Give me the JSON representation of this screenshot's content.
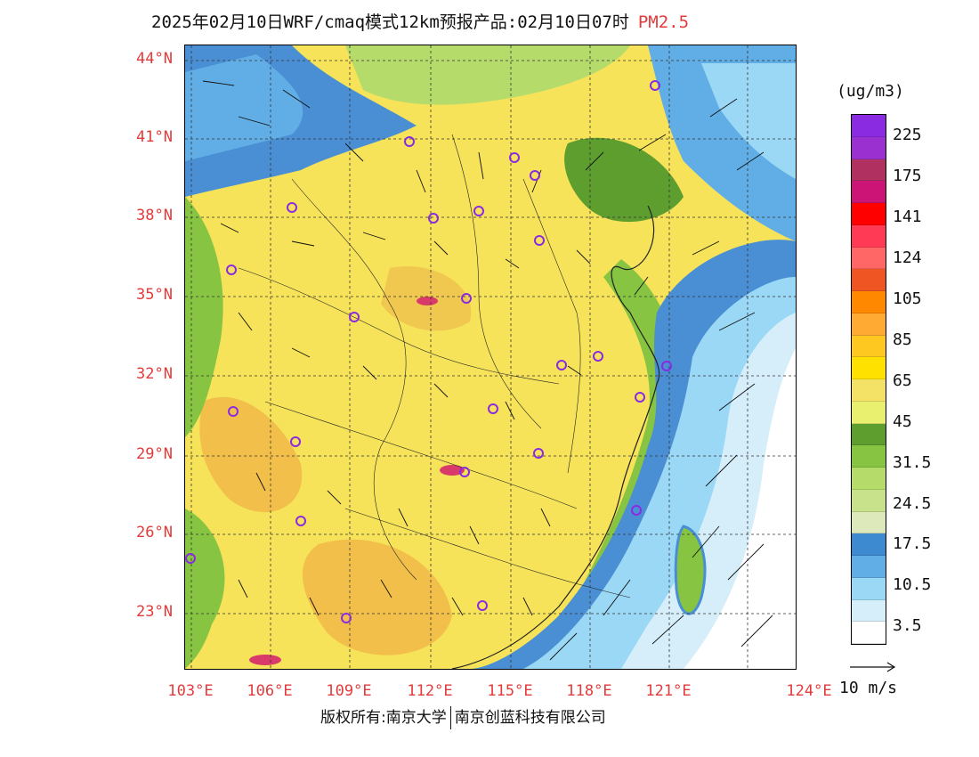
{
  "title": {
    "main": "2025年02月10日WRF/cmaq模式12km预报产品:02月10日07时",
    "pollutant": "PM2.5"
  },
  "axes": {
    "lat_labels": [
      "44°N",
      "41°N",
      "38°N",
      "35°N",
      "32°N",
      "29°N",
      "26°N",
      "23°N"
    ],
    "lon_labels": [
      "103°E",
      "106°E",
      "109°E",
      "112°E",
      "115°E",
      "118°E",
      "121°E",
      "124°E"
    ]
  },
  "legend": {
    "unit": "(ug/m3)",
    "labels": [
      "225",
      "175",
      "141",
      "124",
      "105",
      "85",
      "65",
      "45",
      "31.5",
      "24.5",
      "17.5",
      "10.5",
      "3.5"
    ],
    "colors": [
      "#8a2be2",
      "#9b30d0",
      "#b03060",
      "#cc1477",
      "#ff0000",
      "#ff3a55",
      "#ff6666",
      "#ee5522",
      "#ff8800",
      "#ffaa33",
      "#ffc820",
      "#ffe100",
      "#f4e266",
      "#e9f070",
      "#5e9e2e",
      "#86c441",
      "#b5dc6a",
      "#c8e28c",
      "#dde9bb",
      "#3d8ad1",
      "#61aee6",
      "#9ad8f5",
      "#d5eef9",
      "#ffffff"
    ]
  },
  "wind_scale": {
    "label": "10 m/s"
  },
  "footer": {
    "left": "版权所有:南京大学",
    "right": "南京创蓝科技有限公司"
  },
  "colors": {
    "land_yellow": "#f6e35a",
    "land_orange": "#f2c04a",
    "green": "#5e9e2e",
    "light_green": "#b5dc6a",
    "sea_blue": "#4a8fd4",
    "sea_light": "#d5eef9",
    "label_red": "#e23b3b",
    "station_purple": "#8a2be2"
  }
}
